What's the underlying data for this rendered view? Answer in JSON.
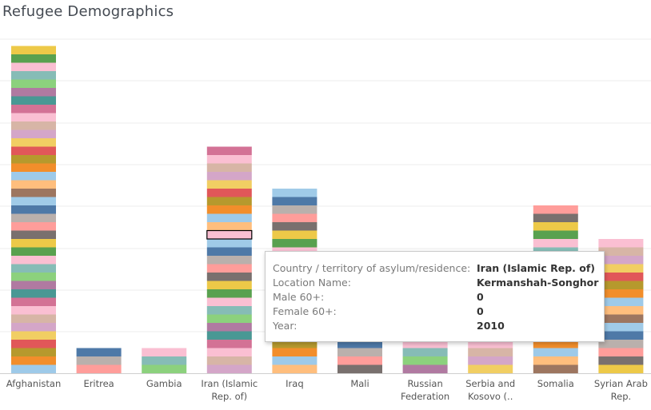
{
  "page_title": "Refugee Demographics",
  "chart_data": {
    "type": "bar",
    "stacked": true,
    "title": "Refugee Demographics",
    "xlabel": "",
    "ylabel": "",
    "grid": true,
    "categories": [
      "Afghanistan",
      "Eritrea",
      "Gambia",
      "Iran (Islamic Rep. of)",
      "Iraq",
      "Mali",
      "Russian Federation",
      "Serbia and Kosovo (..",
      "Somalia",
      "Syrian Arab Rep."
    ],
    "category_labels": [
      [
        "Afghanistan"
      ],
      [
        "Eritrea"
      ],
      [
        "Gambia"
      ],
      [
        "Iran (Islamic",
        "Rep. of)"
      ],
      [
        "Iraq"
      ],
      [
        "Mali"
      ],
      [
        "Russian",
        "Federation"
      ],
      [
        "Serbia and",
        "Kosovo (.."
      ],
      [
        "Somalia"
      ],
      [
        "Syrian Arab",
        "Rep."
      ]
    ],
    "segment_counts": [
      39,
      3,
      3,
      27,
      22,
      4,
      5,
      5,
      20,
      16
    ],
    "highlight": {
      "category_index": 3,
      "segment_index": 16
    }
  },
  "palette": [
    "#9ecae9",
    "#d37295",
    "#79706e",
    "#f28e2b",
    "#499894",
    "#ff9d9a",
    "#b6992d",
    "#b07aa1",
    "#bab0ac",
    "#e15759",
    "#8cd17d",
    "#4e79a7",
    "#f1ce63",
    "#86bcb6",
    "#a0cbe8",
    "#d4a6c8",
    "#fabfd2",
    "#9d7660",
    "#d7b5a6",
    "#59a14f",
    "#ffbe7d",
    "#fabfd2",
    "#edc948"
  ],
  "tooltip": {
    "rows": [
      {
        "key": "Country / territory of asylum/residence:",
        "value": "Iran (Islamic Rep. of)"
      },
      {
        "key": "Location Name:",
        "value": "Kermanshah-Songhor"
      },
      {
        "key": "Male 60+:",
        "value": "0"
      },
      {
        "key": "Female 60+:",
        "value": "0"
      },
      {
        "key": "Year:",
        "value": "2010"
      }
    ]
  }
}
